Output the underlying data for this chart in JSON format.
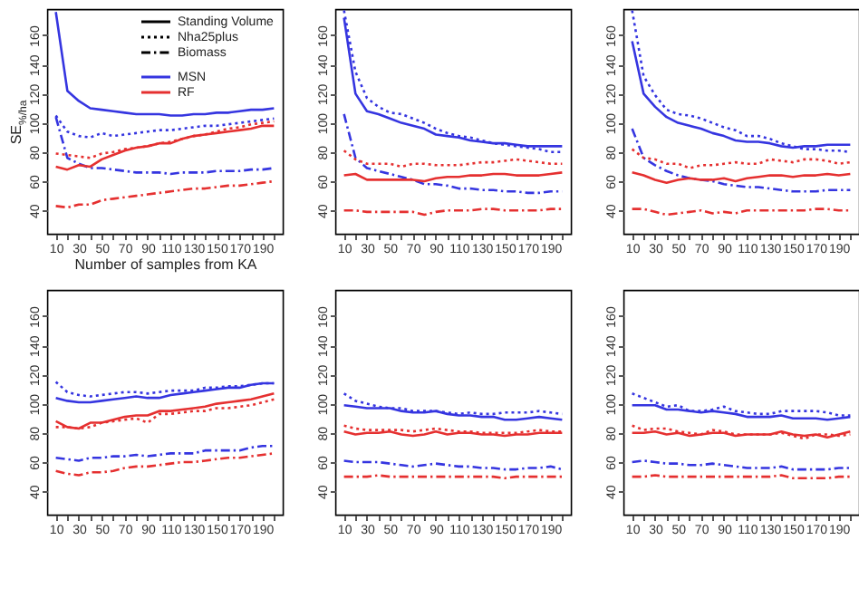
{
  "chart_data": [
    {
      "type": "line",
      "xlabel": "Number of samples from KA",
      "ylabel": "SE$_{%/ha}$",
      "annotations": [
        "Standing Volume",
        "Nha25plus",
        "Biomass",
        "MSN",
        "RF"
      ],
      "x": [
        10,
        20,
        30,
        40,
        50,
        60,
        70,
        80,
        90,
        100,
        110,
        120,
        130,
        140,
        150,
        160,
        170,
        180,
        190,
        200
      ],
      "xlim": [
        2.4,
        207.6
      ],
      "xticks": [
        10,
        {
          "value": 20,
          "label": null
        },
        30,
        {
          "value": 40,
          "label": null
        },
        50,
        {
          "value": 60,
          "label": null
        },
        70,
        {
          "value": 80,
          "label": null
        },
        90,
        {
          "value": 100,
          "label": null
        },
        110,
        {
          "value": 120,
          "label": null
        },
        130,
        {
          "value": 140,
          "label": null
        },
        150,
        {
          "value": 160,
          "label": null
        },
        170,
        {
          "value": 180,
          "label": null
        },
        190,
        {
          "value": 200,
          "label": null
        }
      ],
      "ylim": [
        24,
        178
      ],
      "yticks": [
        40,
        60,
        80,
        100,
        120,
        140,
        160
      ],
      "series": [
        {
          "color": "#3535e0",
          "line_style": "solid",
          "values": [
            176,
            122,
            115,
            110,
            109,
            108,
            107,
            106,
            106,
            106,
            105,
            105,
            106,
            106,
            107,
            107,
            108,
            109,
            109,
            110
          ]
        },
        {
          "color": "#3535e0",
          "line_style": "dotted",
          "values": [
            105,
            94,
            91,
            90,
            93,
            91,
            92,
            93,
            94,
            95,
            95,
            96,
            97,
            98,
            98,
            99,
            100,
            101,
            102,
            103
          ]
        },
        {
          "color": "#3535e0",
          "line_style": "dashdot",
          "values": [
            104,
            76,
            72,
            69,
            69,
            68,
            67,
            66,
            66,
            66,
            65,
            66,
            66,
            66,
            67,
            67,
            67,
            68,
            68,
            69
          ]
        },
        {
          "color": "#e53030",
          "line_style": "solid",
          "values": [
            70,
            68,
            71,
            70,
            75,
            78,
            81,
            83,
            84,
            86,
            86,
            89,
            91,
            92,
            93,
            94,
            95,
            96,
            98,
            98
          ]
        },
        {
          "color": "#e53030",
          "line_style": "dotted",
          "values": [
            79,
            78,
            77,
            76,
            79,
            80,
            82,
            83,
            84,
            86,
            87,
            89,
            91,
            92,
            94,
            96,
            97,
            99,
            100,
            101
          ]
        },
        {
          "color": "#e53030",
          "line_style": "dashdot",
          "values": [
            43,
            42,
            44,
            44,
            47,
            48,
            49,
            50,
            51,
            52,
            53,
            54,
            55,
            55,
            56,
            57,
            57,
            58,
            59,
            60
          ]
        }
      ]
    },
    {
      "type": "line",
      "x": [
        10,
        20,
        30,
        40,
        50,
        60,
        70,
        80,
        90,
        100,
        110,
        120,
        130,
        140,
        150,
        160,
        170,
        180,
        190,
        200
      ],
      "xlim": [
        2.4,
        207.6
      ],
      "xticks": [
        10,
        {
          "value": 20,
          "label": null
        },
        30,
        {
          "value": 40,
          "label": null
        },
        50,
        {
          "value": 60,
          "label": null
        },
        70,
        {
          "value": 80,
          "label": null
        },
        90,
        {
          "value": 100,
          "label": null
        },
        110,
        {
          "value": 120,
          "label": null
        },
        130,
        {
          "value": 140,
          "label": null
        },
        150,
        {
          "value": 160,
          "label": null
        },
        170,
        {
          "value": 180,
          "label": null
        },
        190,
        {
          "value": 200,
          "label": null
        }
      ],
      "ylim": [
        24,
        178
      ],
      "yticks": [
        40,
        60,
        80,
        100,
        120,
        140,
        160
      ],
      "series": [
        {
          "color": "#3535e0",
          "line_style": "solid",
          "values": [
            172,
            120,
            108,
            106,
            103,
            100,
            98,
            96,
            92,
            91,
            90,
            88,
            87,
            86,
            86,
            85,
            84,
            84,
            84,
            84
          ]
        },
        {
          "color": "#3535e0",
          "line_style": "dotted",
          "values": [
            177,
            135,
            117,
            111,
            107,
            106,
            103,
            100,
            96,
            93,
            91,
            90,
            88,
            86,
            85,
            84,
            83,
            82,
            80,
            80
          ]
        },
        {
          "color": "#3535e0",
          "line_style": "dashdot",
          "values": [
            106,
            76,
            69,
            67,
            65,
            63,
            61,
            58,
            58,
            57,
            55,
            55,
            54,
            54,
            53,
            53,
            52,
            52,
            53,
            53
          ]
        },
        {
          "color": "#e53030",
          "line_style": "solid",
          "values": [
            64,
            65,
            61,
            61,
            61,
            61,
            61,
            60,
            62,
            63,
            63,
            64,
            64,
            65,
            65,
            64,
            64,
            64,
            65,
            66
          ]
        },
        {
          "color": "#e53030",
          "line_style": "dotted",
          "values": [
            81,
            75,
            72,
            72,
            72,
            70,
            72,
            72,
            71,
            71,
            71,
            72,
            73,
            73,
            74,
            75,
            74,
            73,
            72,
            72
          ]
        },
        {
          "color": "#e53030",
          "line_style": "dashdot",
          "values": [
            40,
            40,
            39,
            39,
            39,
            39,
            39,
            37,
            39,
            40,
            40,
            40,
            41,
            41,
            40,
            40,
            40,
            40,
            41,
            41
          ]
        }
      ]
    },
    {
      "type": "line",
      "x": [
        10,
        20,
        30,
        40,
        50,
        60,
        70,
        80,
        90,
        100,
        110,
        120,
        130,
        140,
        150,
        160,
        170,
        180,
        190,
        200
      ],
      "xlim": [
        2.4,
        207.6
      ],
      "xticks": [
        10,
        {
          "value": 20,
          "label": null
        },
        30,
        {
          "value": 40,
          "label": null
        },
        50,
        {
          "value": 60,
          "label": null
        },
        70,
        {
          "value": 80,
          "label": null
        },
        90,
        {
          "value": 100,
          "label": null
        },
        110,
        {
          "value": 120,
          "label": null
        },
        130,
        {
          "value": 140,
          "label": null
        },
        150,
        {
          "value": 160,
          "label": null
        },
        170,
        {
          "value": 180,
          "label": null
        },
        190,
        {
          "value": 200,
          "label": null
        }
      ],
      "ylim": [
        24,
        178
      ],
      "yticks": [
        40,
        60,
        80,
        100,
        120,
        140,
        160
      ],
      "series": [
        {
          "color": "#3535e0",
          "line_style": "solid",
          "values": [
            156,
            120,
            111,
            104,
            100,
            98,
            96,
            93,
            91,
            88,
            87,
            87,
            86,
            84,
            83,
            84,
            84,
            85,
            85,
            85
          ]
        },
        {
          "color": "#3535e0",
          "line_style": "dotted",
          "values": [
            177,
            132,
            119,
            109,
            106,
            105,
            103,
            100,
            97,
            95,
            91,
            91,
            89,
            86,
            84,
            82,
            82,
            81,
            81,
            80
          ]
        },
        {
          "color": "#3535e0",
          "line_style": "dashdot",
          "values": [
            96,
            76,
            71,
            67,
            64,
            62,
            61,
            60,
            58,
            57,
            56,
            56,
            55,
            54,
            53,
            53,
            53,
            54,
            54,
            54
          ]
        },
        {
          "color": "#e53030",
          "line_style": "solid",
          "values": [
            66,
            64,
            61,
            59,
            61,
            62,
            61,
            61,
            62,
            60,
            62,
            63,
            64,
            64,
            63,
            64,
            64,
            65,
            64,
            65
          ]
        },
        {
          "color": "#e53030",
          "line_style": "dotted",
          "values": [
            82,
            76,
            75,
            72,
            72,
            69,
            71,
            71,
            72,
            73,
            72,
            72,
            75,
            74,
            73,
            75,
            75,
            74,
            72,
            73
          ]
        },
        {
          "color": "#e53030",
          "line_style": "dashdot",
          "values": [
            41,
            41,
            39,
            37,
            38,
            39,
            40,
            38,
            39,
            38,
            40,
            40,
            40,
            40,
            40,
            40,
            41,
            41,
            40,
            40
          ]
        }
      ]
    },
    {
      "type": "line",
      "x": [
        10,
        20,
        30,
        40,
        50,
        60,
        70,
        80,
        90,
        100,
        110,
        120,
        130,
        140,
        150,
        160,
        170,
        180,
        190,
        200
      ],
      "xlim": [
        2.4,
        207.6
      ],
      "xticks": [
        10,
        {
          "value": 20,
          "label": null
        },
        30,
        {
          "value": 40,
          "label": null
        },
        50,
        {
          "value": 60,
          "label": null
        },
        70,
        {
          "value": 80,
          "label": null
        },
        90,
        {
          "value": 100,
          "label": null
        },
        110,
        {
          "value": 120,
          "label": null
        },
        130,
        {
          "value": 140,
          "label": null
        },
        150,
        {
          "value": 160,
          "label": null
        },
        170,
        {
          "value": 180,
          "label": null
        },
        190,
        {
          "value": 200,
          "label": null
        }
      ],
      "ylim": [
        24,
        178
      ],
      "yticks": [
        40,
        60,
        80,
        100,
        120,
        140,
        160
      ],
      "series": [
        {
          "color": "#3535e0",
          "line_style": "solid",
          "values": [
            104,
            102,
            101,
            101,
            102,
            103,
            104,
            105,
            104,
            104,
            106,
            107,
            108,
            109,
            110,
            111,
            111,
            113,
            114,
            114
          ]
        },
        {
          "color": "#3535e0",
          "line_style": "dotted",
          "values": [
            115,
            108,
            106,
            105,
            106,
            107,
            108,
            108,
            107,
            108,
            109,
            109,
            109,
            111,
            111,
            112,
            112,
            113,
            114,
            114
          ]
        },
        {
          "color": "#3535e0",
          "line_style": "dashdot",
          "values": [
            63,
            62,
            61,
            63,
            63,
            64,
            64,
            65,
            64,
            65,
            66,
            66,
            66,
            68,
            68,
            68,
            68,
            70,
            71,
            71
          ]
        },
        {
          "color": "#e53030",
          "line_style": "solid",
          "values": [
            88,
            84,
            83,
            87,
            87,
            89,
            91,
            92,
            92,
            95,
            95,
            96,
            97,
            98,
            100,
            101,
            102,
            103,
            105,
            107
          ]
        },
        {
          "color": "#e53030",
          "line_style": "dotted",
          "values": [
            84,
            84,
            83,
            84,
            87,
            88,
            89,
            90,
            87,
            93,
            93,
            94,
            95,
            95,
            97,
            97,
            98,
            99,
            101,
            103
          ]
        },
        {
          "color": "#e53030",
          "line_style": "dashdot",
          "values": [
            54,
            52,
            51,
            53,
            53,
            54,
            56,
            57,
            57,
            58,
            59,
            60,
            60,
            61,
            62,
            63,
            63,
            64,
            65,
            66
          ]
        }
      ]
    },
    {
      "type": "line",
      "x": [
        10,
        20,
        30,
        40,
        50,
        60,
        70,
        80,
        90,
        100,
        110,
        120,
        130,
        140,
        150,
        160,
        170,
        180,
        190,
        200
      ],
      "xlim": [
        2.4,
        207.6
      ],
      "xticks": [
        10,
        {
          "value": 20,
          "label": null
        },
        30,
        {
          "value": 40,
          "label": null
        },
        50,
        {
          "value": 60,
          "label": null
        },
        70,
        {
          "value": 80,
          "label": null
        },
        90,
        {
          "value": 100,
          "label": null
        },
        110,
        {
          "value": 120,
          "label": null
        },
        130,
        {
          "value": 140,
          "label": null
        },
        150,
        {
          "value": 160,
          "label": null
        },
        170,
        {
          "value": 180,
          "label": null
        },
        190,
        {
          "value": 200,
          "label": null
        }
      ],
      "ylim": [
        24,
        178
      ],
      "yticks": [
        40,
        60,
        80,
        100,
        120,
        140,
        160
      ],
      "series": [
        {
          "color": "#3535e0",
          "line_style": "solid",
          "values": [
            99,
            98,
            97,
            97,
            97,
            95,
            94,
            94,
            95,
            93,
            92,
            92,
            91,
            91,
            89,
            89,
            90,
            91,
            90,
            89
          ]
        },
        {
          "color": "#3535e0",
          "line_style": "dotted",
          "values": [
            107,
            102,
            100,
            98,
            97,
            97,
            95,
            95,
            95,
            94,
            93,
            94,
            93,
            93,
            94,
            94,
            94,
            95,
            94,
            93
          ]
        },
        {
          "color": "#3535e0",
          "line_style": "dashdot",
          "values": [
            61,
            60,
            60,
            60,
            59,
            58,
            57,
            58,
            59,
            58,
            57,
            57,
            56,
            56,
            55,
            55,
            56,
            56,
            57,
            55
          ]
        },
        {
          "color": "#e53030",
          "line_style": "solid",
          "values": [
            81,
            79,
            80,
            80,
            81,
            79,
            78,
            79,
            81,
            79,
            80,
            80,
            79,
            79,
            78,
            79,
            79,
            80,
            80,
            80
          ]
        },
        {
          "color": "#e53030",
          "line_style": "dotted",
          "values": [
            85,
            83,
            82,
            82,
            82,
            82,
            81,
            82,
            83,
            82,
            81,
            81,
            80,
            80,
            80,
            80,
            81,
            82,
            81,
            81
          ]
        },
        {
          "color": "#e53030",
          "line_style": "dashdot",
          "values": [
            50,
            50,
            50,
            51,
            50,
            50,
            50,
            50,
            50,
            50,
            50,
            50,
            50,
            50,
            49,
            50,
            50,
            50,
            50,
            50
          ]
        }
      ]
    },
    {
      "type": "line",
      "x": [
        10,
        20,
        30,
        40,
        50,
        60,
        70,
        80,
        90,
        100,
        110,
        120,
        130,
        140,
        150,
        160,
        170,
        180,
        190,
        200
      ],
      "xlim": [
        2.4,
        207.6
      ],
      "xticks": [
        10,
        {
          "value": 20,
          "label": null
        },
        30,
        {
          "value": 40,
          "label": null
        },
        50,
        {
          "value": 60,
          "label": null
        },
        70,
        {
          "value": 80,
          "label": null
        },
        90,
        {
          "value": 100,
          "label": null
        },
        110,
        {
          "value": 120,
          "label": null
        },
        130,
        {
          "value": 140,
          "label": null
        },
        150,
        {
          "value": 160,
          "label": null
        },
        170,
        {
          "value": 180,
          "label": null
        },
        190,
        {
          "value": 200,
          "label": null
        }
      ],
      "ylim": [
        24,
        178
      ],
      "yticks": [
        40,
        60,
        80,
        100,
        120,
        140,
        160
      ],
      "series": [
        {
          "color": "#3535e0",
          "line_style": "solid",
          "values": [
            99,
            99,
            99,
            96,
            96,
            95,
            94,
            95,
            94,
            93,
            91,
            91,
            91,
            92,
            90,
            90,
            90,
            89,
            90,
            91
          ]
        },
        {
          "color": "#3535e0",
          "line_style": "dotted",
          "values": [
            107,
            104,
            101,
            98,
            99,
            95,
            95,
            96,
            98,
            95,
            94,
            93,
            93,
            95,
            95,
            95,
            95,
            94,
            92,
            92
          ]
        },
        {
          "color": "#3535e0",
          "line_style": "dashdot",
          "values": [
            60,
            61,
            60,
            59,
            59,
            58,
            58,
            59,
            58,
            57,
            56,
            56,
            56,
            57,
            55,
            55,
            55,
            55,
            56,
            56
          ]
        },
        {
          "color": "#e53030",
          "line_style": "solid",
          "values": [
            80,
            80,
            81,
            79,
            80,
            78,
            79,
            80,
            80,
            78,
            79,
            79,
            79,
            81,
            79,
            78,
            79,
            77,
            79,
            81
          ]
        },
        {
          "color": "#e53030",
          "line_style": "dotted",
          "values": [
            85,
            82,
            83,
            83,
            81,
            80,
            79,
            82,
            81,
            79,
            79,
            79,
            79,
            80,
            78,
            76,
            79,
            79,
            78,
            79
          ]
        },
        {
          "color": "#e53030",
          "line_style": "dashdot",
          "values": [
            50,
            50,
            51,
            50,
            50,
            50,
            50,
            50,
            50,
            50,
            50,
            50,
            50,
            51,
            49,
            49,
            49,
            49,
            50,
            50
          ]
        }
      ]
    }
  ]
}
